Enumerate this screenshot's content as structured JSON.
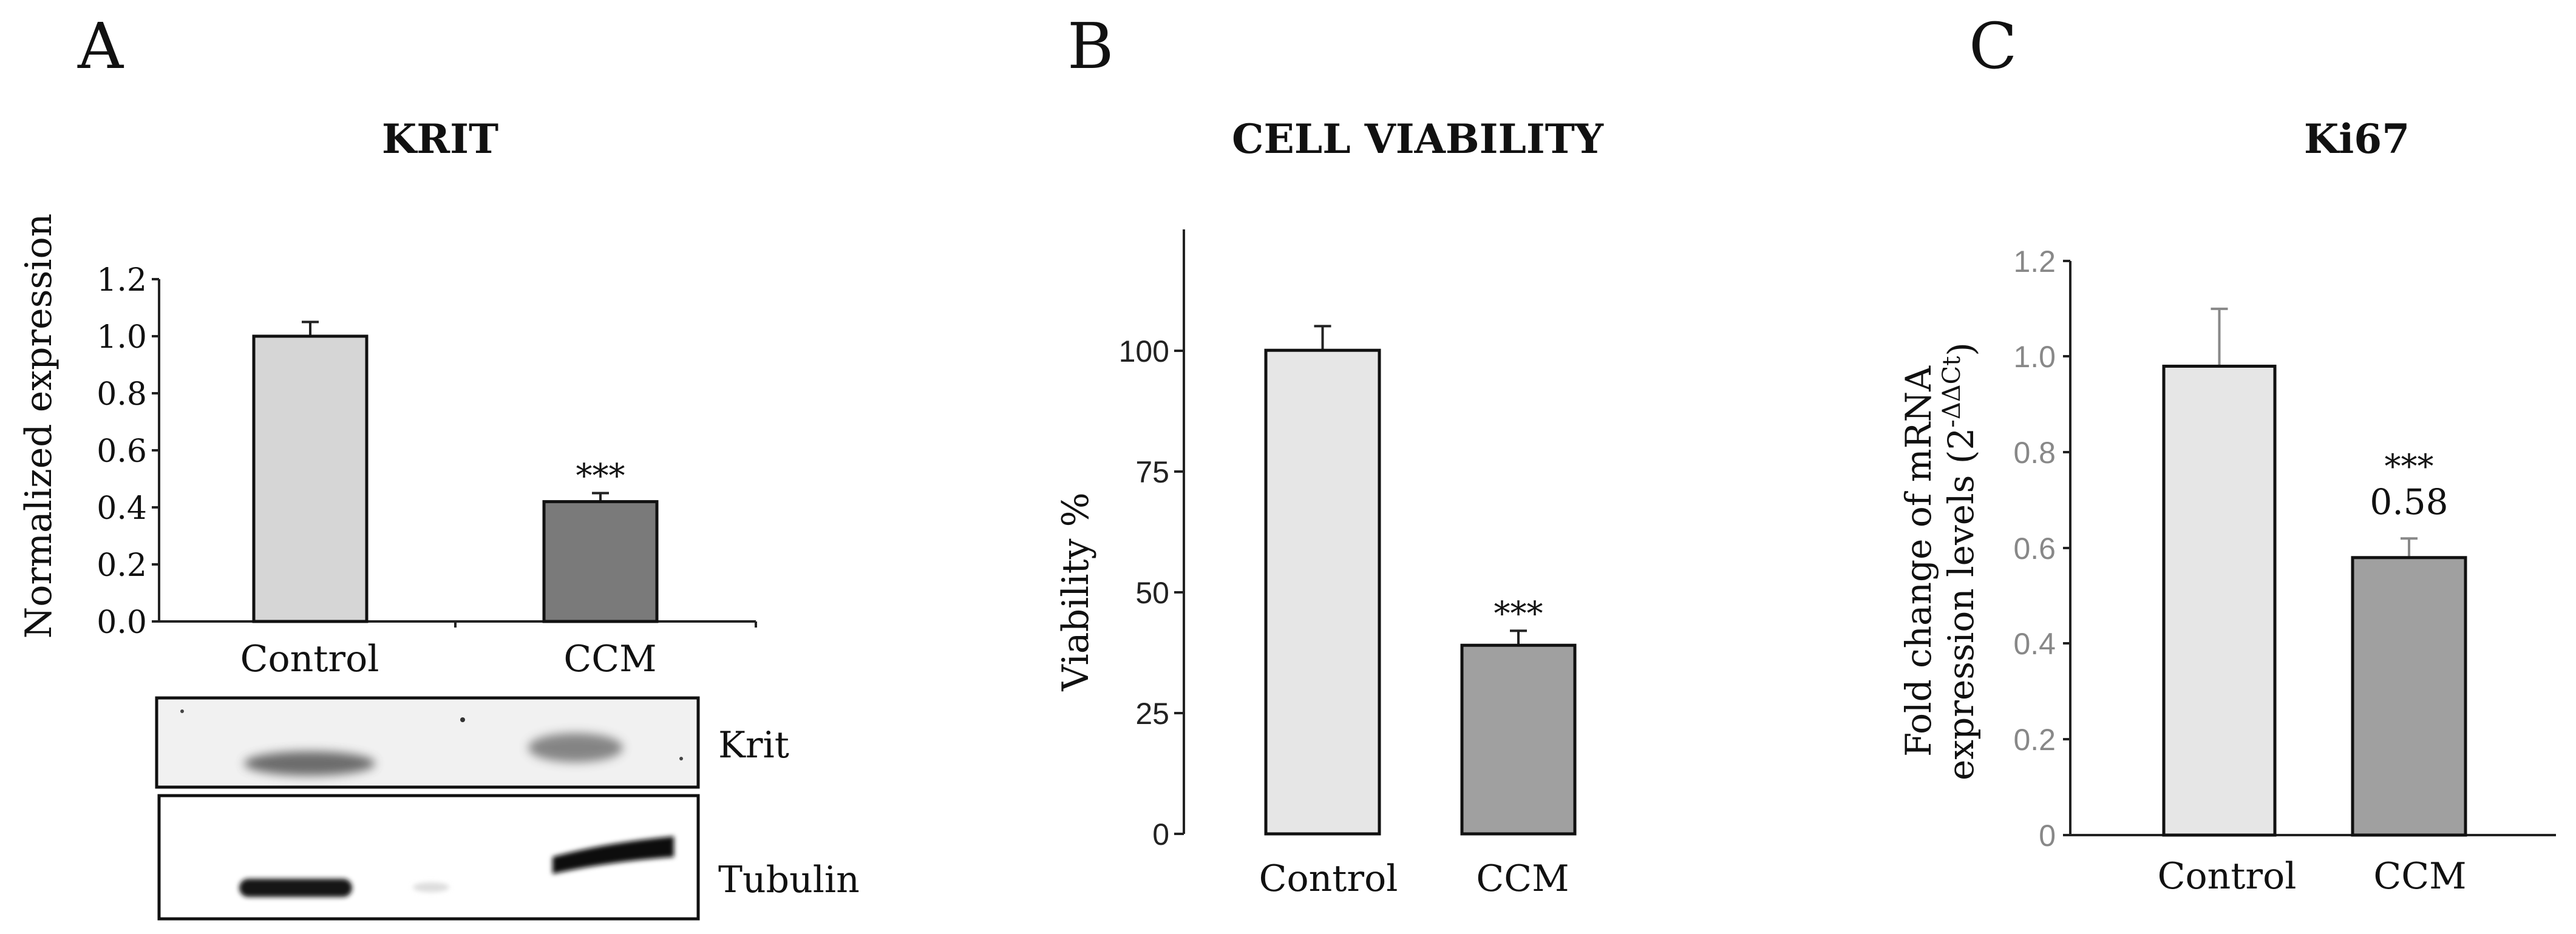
{
  "panel_letters": [
    "A",
    "B",
    "C"
  ],
  "chart_data": [
    {
      "type": "bar",
      "title": "KRIT",
      "xlabel": "",
      "ylabel": "Normalized expression",
      "categories": [
        "Control",
        "CCM"
      ],
      "values": [
        1.0,
        0.42
      ],
      "errors": [
        0.05,
        0.03
      ],
      "significance": [
        "",
        "***"
      ],
      "ylim": [
        0,
        1.2
      ],
      "yticks": [
        "0.0",
        "0.2",
        "0.4",
        "0.6",
        "0.8",
        "1.0",
        "1.2"
      ],
      "bar_colors": [
        "#d6d6d6",
        "#7a7a7a"
      ]
    },
    {
      "type": "bar",
      "title": "CELL VIABILITY",
      "xlabel": "",
      "ylabel": "Viability %",
      "categories": [
        "Control",
        "CCM"
      ],
      "values": [
        100,
        39
      ],
      "errors": [
        5,
        3
      ],
      "significance": [
        "",
        "***"
      ],
      "ylim": [
        0,
        125
      ],
      "yticks": [
        "0",
        "25",
        "50",
        "75",
        "100"
      ],
      "bar_colors": [
        "#e6e6e6",
        "#a0a0a0"
      ]
    },
    {
      "type": "bar",
      "title": "Ki67",
      "xlabel": "",
      "ylabel": "Fold change of mRNA expression levels (2-ΔΔCt)",
      "categories": [
        "Control",
        "CCM"
      ],
      "values": [
        0.98,
        0.58
      ],
      "errors": [
        0.12,
        0.04
      ],
      "value_labels": [
        "",
        "0.58"
      ],
      "significance": [
        "",
        "***"
      ],
      "ylim": [
        0,
        1.2
      ],
      "yticks": [
        "0",
        "0.2",
        "0.4",
        "0.6",
        "0.8",
        "1.0",
        "1.2"
      ],
      "bar_colors": [
        "#e6e6e6",
        "#a0a0a0"
      ]
    }
  ],
  "blot": {
    "labels": [
      "Krit",
      "Tubulin"
    ]
  }
}
